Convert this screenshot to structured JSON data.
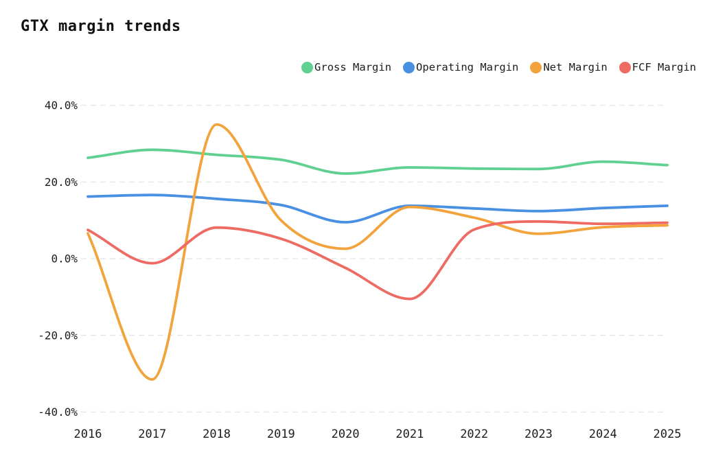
{
  "title": "GTX margin trends",
  "colors": {
    "background": "#ffffff",
    "grid": "#e7e7e7",
    "text": "#1c1c1c",
    "title_text": "#111111",
    "gross_margin": "#5fd08f",
    "operating_margin": "#4a90e2",
    "net_margin": "#f2a33c",
    "fcf_margin": "#ee6b64"
  },
  "legend": {
    "position": "top-right",
    "items": [
      {
        "label": "Gross Margin",
        "color": "#5fd08f"
      },
      {
        "label": "Operating Margin",
        "color": "#4a90e2"
      },
      {
        "label": "Net Margin",
        "color": "#f2a33c"
      },
      {
        "label": "FCF Margin",
        "color": "#ee6b64"
      }
    ]
  },
  "chart_data": {
    "type": "line",
    "title": "GTX margin trends",
    "curve": "monotone",
    "unit": "%",
    "xlabel": "",
    "ylabel": "",
    "categories": [
      2016,
      2017,
      2018,
      2019,
      2020,
      2021,
      2022,
      2023,
      2024,
      2025
    ],
    "series": [
      {
        "name": "Gross Margin",
        "color": "#5fd08f",
        "values": [
          26.3,
          28.4,
          27.1,
          25.8,
          22.2,
          23.8,
          23.5,
          23.4,
          25.3,
          24.4
        ]
      },
      {
        "name": "Operating Margin",
        "color": "#4a90e2",
        "values": [
          16.2,
          16.6,
          15.6,
          14.0,
          9.5,
          13.8,
          13.1,
          12.4,
          13.2,
          13.8
        ]
      },
      {
        "name": "Net Margin",
        "color": "#f2a33c",
        "values": [
          6.6,
          -31.5,
          35.0,
          10.0,
          2.6,
          13.5,
          10.7,
          6.5,
          8.2,
          8.7
        ]
      },
      {
        "name": "FCF Margin",
        "color": "#ee6b64",
        "values": [
          7.5,
          -1.2,
          8.1,
          5.2,
          -2.4,
          -10.5,
          7.6,
          9.7,
          9.1,
          9.4
        ]
      }
    ],
    "ylim": [
      -45,
      45
    ],
    "yticks": [
      {
        "value": 40,
        "label": "40.0%"
      },
      {
        "value": 20,
        "label": "20.0%"
      },
      {
        "value": 0,
        "label": "0.0%"
      },
      {
        "value": -20,
        "label": "-20.0%"
      },
      {
        "value": -40,
        "label": "-40.0%"
      }
    ],
    "xtick_labels": [
      "2016",
      "2017",
      "2018",
      "2019",
      "2020",
      "2021",
      "2022",
      "2023",
      "2024",
      "2025"
    ],
    "grid": "horizontal-dashed",
    "legend_position": "top-right"
  }
}
